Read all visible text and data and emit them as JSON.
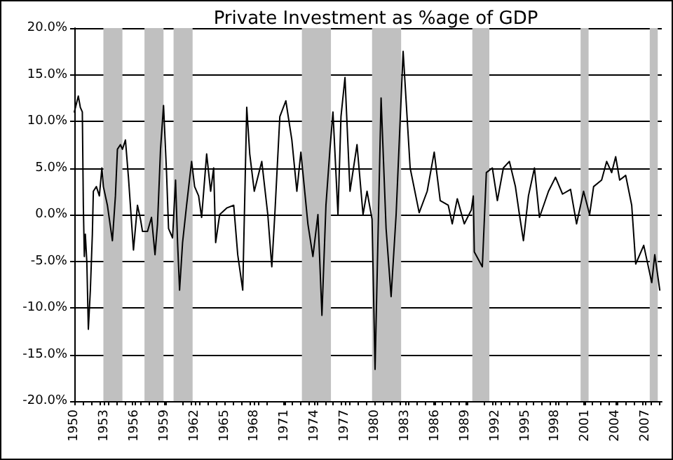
{
  "chart_data": {
    "type": "line",
    "title": "Private Investment as %age of GDP",
    "x": [
      1950.0,
      1950.4,
      1950.6,
      1950.8,
      1950.9,
      1951.0,
      1951.1,
      1951.25,
      1951.4,
      1951.6,
      1951.8,
      1951.9,
      1952.2,
      1952.5,
      1952.75,
      1952.9,
      1953.3,
      1953.8,
      1954.1,
      1954.3,
      1954.6,
      1954.8,
      1955.1,
      1955.4,
      1955.9,
      1956.3,
      1956.6,
      1956.8,
      1957.3,
      1957.7,
      1958.05,
      1958.3,
      1958.6,
      1958.9,
      1959.2,
      1959.4,
      1959.8,
      1960.1,
      1960.3,
      1960.5,
      1960.8,
      1961.2,
      1961.7,
      1962.0,
      1962.4,
      1962.7,
      1963.2,
      1963.6,
      1963.9,
      1964.1,
      1964.5,
      1965.2,
      1965.9,
      1966.3,
      1966.8,
      1967.2,
      1967.5,
      1967.95,
      1968.7,
      1969.3,
      1969.7,
      1970.0,
      1970.5,
      1971.1,
      1971.7,
      1972.2,
      1972.6,
      1973.3,
      1973.8,
      1974.3,
      1974.7,
      1975.1,
      1975.5,
      1975.8,
      1976.3,
      1976.6,
      1977.0,
      1977.5,
      1978.2,
      1978.8,
      1979.2,
      1979.7,
      1980.0,
      1980.6,
      1981.1,
      1981.6,
      1982.1,
      1982.8,
      1983.5,
      1984.4,
      1985.2,
      1985.9,
      1986.5,
      1987.3,
      1987.7,
      1988.2,
      1988.9,
      1989.6,
      1989.8,
      1989.9,
      1990.7,
      1991.1,
      1991.7,
      1992.2,
      1992.8,
      1993.4,
      1994.0,
      1994.4,
      1994.8,
      1995.3,
      1995.9,
      1996.4,
      1997.3,
      1998.0,
      1998.7,
      1999.5,
      2000.1,
      2000.8,
      2001.4,
      2001.8,
      2002.6,
      2003.1,
      2003.6,
      2004.0,
      2004.4,
      2005.0,
      2005.6,
      2006.0,
      2006.8,
      2007.6,
      2007.9,
      2008.4
    ],
    "series": [
      {
        "color": "#000000",
        "values": [
          11.0,
          12.7,
          11.5,
          11.0,
          1.0,
          -4.5,
          -2.1,
          -5.1,
          -12.3,
          -8.1,
          -2.1,
          2.5,
          3.0,
          2.0,
          5.0,
          3.0,
          1.0,
          -2.8,
          2.0,
          7.0,
          7.5,
          7.0,
          8.0,
          4.0,
          -3.8,
          1.0,
          -0.5,
          -1.8,
          -1.8,
          -0.3,
          -4.3,
          -1.0,
          7.0,
          11.7,
          4.5,
          -1.5,
          -2.5,
          3.7,
          -3.0,
          -8.1,
          -3.0,
          1.0,
          5.7,
          3.0,
          2.0,
          -0.3,
          6.5,
          2.5,
          5.0,
          -3.0,
          0.0,
          0.7,
          1.0,
          -4.3,
          -8.1,
          11.5,
          6.5,
          2.5,
          5.7,
          0.0,
          -5.6,
          0.0,
          10.5,
          12.2,
          8.0,
          2.5,
          6.7,
          -1.0,
          -4.5,
          0.0,
          -10.8,
          1.0,
          7.0,
          11.0,
          0.0,
          10.5,
          14.7,
          2.5,
          7.5,
          0.0,
          2.5,
          -0.5,
          -16.6,
          12.5,
          -1.5,
          -8.8,
          0.0,
          17.5,
          5.0,
          0.2,
          2.5,
          6.7,
          1.5,
          1.0,
          -1.0,
          1.7,
          -1.0,
          0.5,
          2.0,
          -4.0,
          -5.6,
          4.5,
          5.0,
          1.5,
          5.0,
          5.7,
          3.0,
          0.0,
          -2.8,
          2.0,
          5.0,
          -0.3,
          2.5,
          4.0,
          2.2,
          2.7,
          -1.0,
          2.5,
          0.0,
          3.0,
          3.7,
          5.7,
          4.5,
          6.2,
          3.7,
          4.2,
          1.0,
          -5.3,
          -3.3,
          -7.3,
          -4.3,
          -8.1
        ]
      }
    ],
    "xlim": [
      1950,
      2008.6
    ],
    "xticks": [
      1950,
      1953,
      1956,
      1959,
      1962,
      1965,
      1968,
      1971,
      1974,
      1977,
      1980,
      1983,
      1986,
      1989,
      1992,
      1995,
      1998,
      2001,
      2004,
      2007
    ],
    "ylim": [
      -20,
      20
    ],
    "yticks": [
      {
        "value": -20,
        "label": "-20.0%"
      },
      {
        "value": -15,
        "label": "-15.0%"
      },
      {
        "value": -10,
        "label": "-10.0%"
      },
      {
        "value": -5,
        "label": "-5.0%"
      },
      {
        "value": 0,
        "label": "0.0%"
      },
      {
        "value": 5,
        "label": "5.0%"
      },
      {
        "value": 10,
        "label": "10.0%"
      },
      {
        "value": 15,
        "label": "15.0%"
      },
      {
        "value": 20,
        "label": "20.0%"
      }
    ],
    "bands": [
      {
        "axis": "x",
        "from": 1952.9,
        "to": 1954.8,
        "color": "#c0c0c0"
      },
      {
        "axis": "x",
        "from": 1957.0,
        "to": 1958.9,
        "color": "#c0c0c0"
      },
      {
        "axis": "x",
        "from": 1959.9,
        "to": 1961.8,
        "color": "#c0c0c0"
      },
      {
        "axis": "x",
        "from": 1972.7,
        "to": 1975.6,
        "color": "#c0c0c0"
      },
      {
        "axis": "x",
        "from": 1979.7,
        "to": 1982.6,
        "color": "#c0c0c0"
      },
      {
        "axis": "x",
        "from": 1989.7,
        "to": 1991.4,
        "color": "#c0c0c0"
      },
      {
        "axis": "x",
        "from": 2000.5,
        "to": 2001.3,
        "color": "#c0c0c0"
      },
      {
        "axis": "x",
        "from": 2007.4,
        "to": 2008.2,
        "color": "#c0c0c0"
      }
    ],
    "grid": "y",
    "marker": "none",
    "line_style": "solid"
  }
}
